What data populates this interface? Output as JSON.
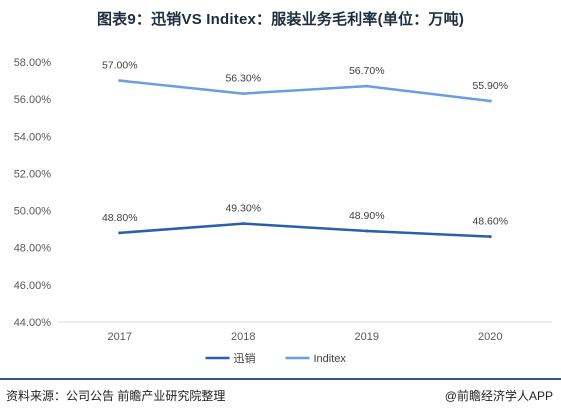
{
  "title": "图表9：迅销VS Inditex：服装业务毛利率(单位：万吨)",
  "footer": {
    "source": "资料来源：公司公告 前瞻产业研究院整理",
    "brand": "@前瞻经济学人APP"
  },
  "chart_data": {
    "type": "line",
    "title": "图表9：迅销VS Inditex：服装业务毛利率(单位：万吨)",
    "xlabel": "",
    "ylabel": "",
    "categories": [
      "2017",
      "2018",
      "2019",
      "2020"
    ],
    "y_ticks": [
      "44.00%",
      "46.00%",
      "48.00%",
      "50.00%",
      "52.00%",
      "54.00%",
      "56.00%",
      "58.00%"
    ],
    "ylim": [
      44,
      58
    ],
    "grid": false,
    "legend_position": "bottom",
    "series": [
      {
        "name": "迅销",
        "values": [
          48.8,
          49.3,
          48.9,
          48.6
        ],
        "labels": [
          "48.80%",
          "49.30%",
          "48.90%",
          "48.60%"
        ],
        "color": "#2a5fae"
      },
      {
        "name": "Inditex",
        "values": [
          57.0,
          56.3,
          56.7,
          55.9
        ],
        "labels": [
          "57.00%",
          "56.30%",
          "56.70%",
          "55.90%"
        ],
        "color": "#6a9de2"
      }
    ]
  }
}
